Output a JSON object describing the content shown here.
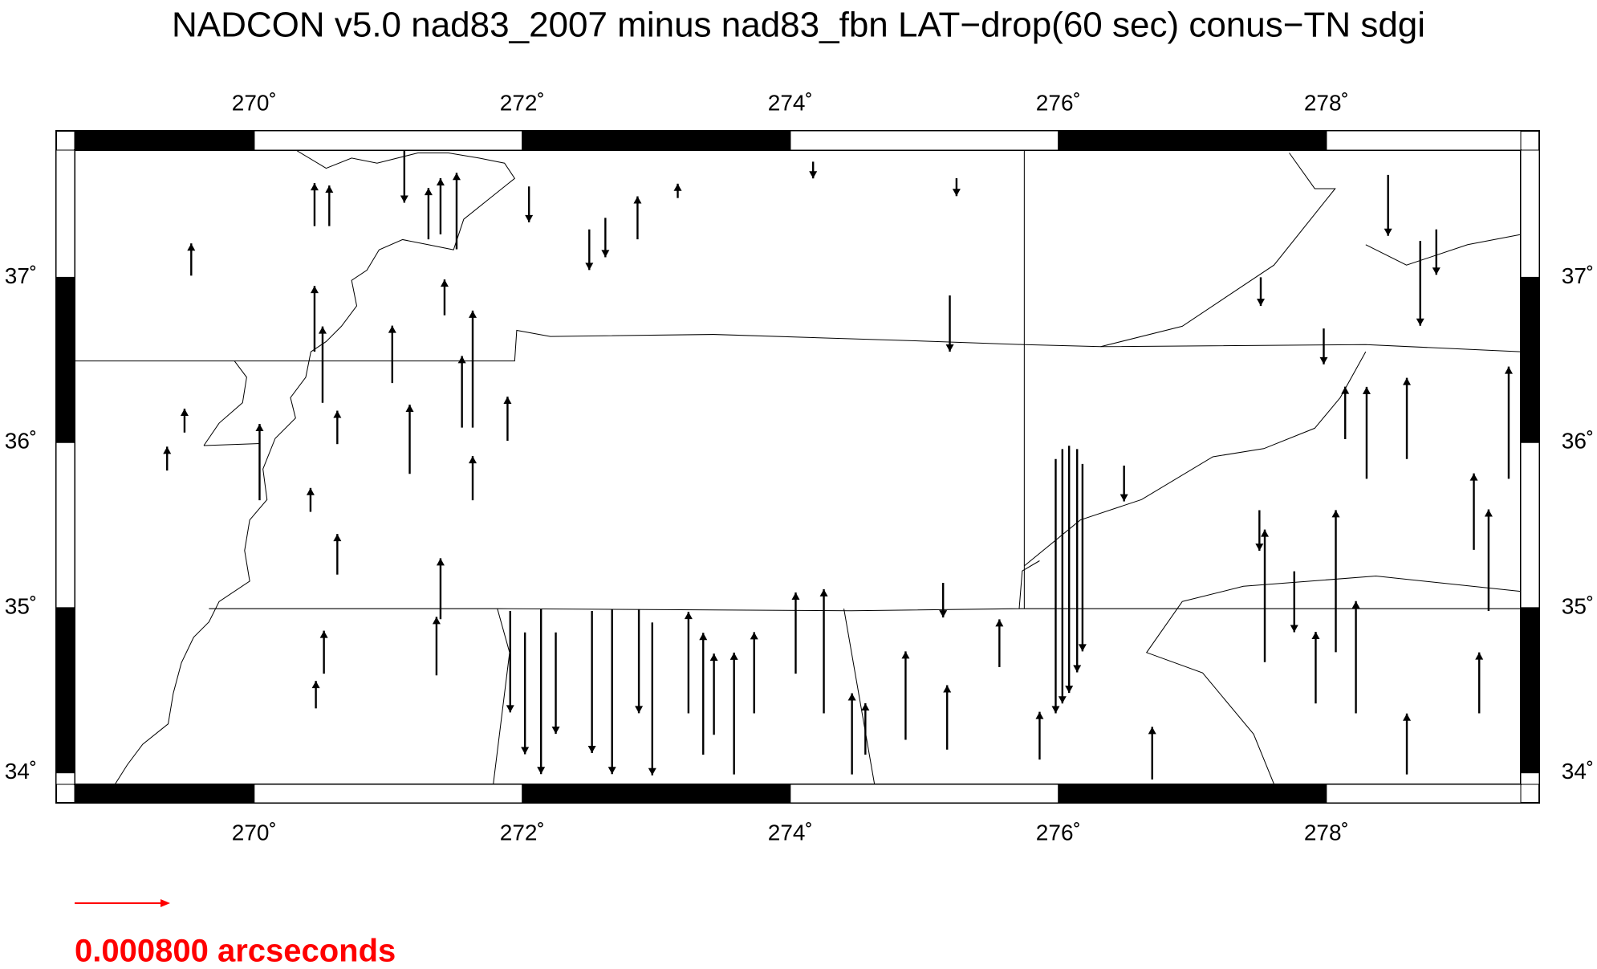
{
  "title": "NADCON v5.0 nad83_2007 minus nad83_fbn LAT−drop(60 sec) conus−TN sdgi",
  "map": {
    "xlim": [
      268.66,
      279.45
    ],
    "ylim": [
      33.93,
      37.77
    ],
    "xticks": [
      {
        "value": 270,
        "label": "270˚"
      },
      {
        "value": 272,
        "label": "272˚"
      },
      {
        "value": 274,
        "label": "274˚"
      },
      {
        "value": 276,
        "label": "276˚"
      },
      {
        "value": 278,
        "label": "278˚"
      }
    ],
    "yticks": [
      {
        "value": 34,
        "label": "34˚"
      },
      {
        "value": 35,
        "label": "35˚"
      },
      {
        "value": 36,
        "label": "36˚"
      },
      {
        "value": 37,
        "label": "37˚"
      }
    ],
    "arrows": [
      [
        269.53,
        37.01,
        0.00027
      ],
      [
        270.45,
        37.31,
        0.00036
      ],
      [
        270.56,
        37.31,
        0.00034
      ],
      [
        271.12,
        37.77,
        -0.00044
      ],
      [
        271.3,
        37.23,
        0.00043
      ],
      [
        271.39,
        37.26,
        0.00047
      ],
      [
        271.51,
        37.17,
        0.00064
      ],
      [
        272.05,
        37.55,
        -0.0003
      ],
      [
        272.5,
        37.29,
        -0.00034
      ],
      [
        272.62,
        37.36,
        -0.00033
      ],
      [
        272.86,
        37.23,
        0.00036
      ],
      [
        273.16,
        37.48,
        0.00012
      ],
      [
        274.17,
        37.7,
        -0.00014
      ],
      [
        275.24,
        37.6,
        -0.00015
      ],
      [
        278.46,
        37.62,
        -0.00051
      ],
      [
        278.7,
        37.22,
        -0.00071
      ],
      [
        278.82,
        37.29,
        -0.00038
      ],
      [
        277.51,
        37.0,
        -0.00024
      ],
      [
        277.98,
        36.69,
        -0.0003
      ],
      [
        270.45,
        36.55,
        0.00055
      ],
      [
        270.51,
        36.24,
        0.00064
      ],
      [
        271.03,
        36.36,
        0.00048
      ],
      [
        271.42,
        36.77,
        0.0003
      ],
      [
        271.63,
        36.09,
        0.00098
      ],
      [
        271.55,
        36.09,
        0.0006
      ],
      [
        271.89,
        36.01,
        0.00037
      ],
      [
        271.16,
        35.81,
        0.00058
      ],
      [
        271.63,
        35.65,
        0.00037
      ],
      [
        270.62,
        35.99,
        0.00028
      ],
      [
        269.48,
        36.06,
        0.0002
      ],
      [
        269.35,
        35.83,
        0.0002
      ],
      [
        270.04,
        35.65,
        0.00064
      ],
      [
        270.42,
        35.58,
        0.0002
      ],
      [
        270.62,
        35.2,
        0.00034
      ],
      [
        271.39,
        34.93,
        0.00051
      ],
      [
        271.36,
        34.59,
        0.00049
      ],
      [
        270.52,
        34.6,
        0.00036
      ],
      [
        270.46,
        34.39,
        0.00023
      ],
      [
        275.19,
        36.89,
        -0.00047
      ],
      [
        276.49,
        35.86,
        -0.0003
      ],
      [
        275.14,
        35.15,
        -0.00029
      ],
      [
        275.56,
        34.64,
        0.0004
      ],
      [
        275.17,
        34.14,
        0.00054
      ],
      [
        274.86,
        34.2,
        0.00074
      ],
      [
        275.86,
        34.08,
        0.0004
      ],
      [
        276.7,
        33.96,
        0.00044
      ],
      [
        276.03,
        35.96,
        -0.00213
      ],
      [
        276.08,
        35.98,
        -0.00207
      ],
      [
        275.98,
        35.9,
        -0.00213
      ],
      [
        276.14,
        35.96,
        -0.00187
      ],
      [
        276.18,
        35.87,
        -0.00157
      ],
      [
        271.91,
        34.98,
        -0.00085
      ],
      [
        272.02,
        34.85,
        -0.00102
      ],
      [
        272.14,
        34.99,
        -0.00138
      ],
      [
        272.25,
        34.85,
        -0.00085
      ],
      [
        272.52,
        34.98,
        -0.00119
      ],
      [
        272.67,
        34.99,
        -0.00138
      ],
      [
        272.87,
        34.99,
        -0.00087
      ],
      [
        272.97,
        34.91,
        -0.00128
      ],
      [
        273.24,
        34.36,
        0.00085
      ],
      [
        273.35,
        34.11,
        0.00102
      ],
      [
        273.43,
        34.23,
        0.00068
      ],
      [
        273.58,
        33.99,
        0.00102
      ],
      [
        273.73,
        34.36,
        0.00068
      ],
      [
        274.04,
        34.6,
        0.00068
      ],
      [
        274.25,
        34.36,
        0.00104
      ],
      [
        274.46,
        33.99,
        0.00068
      ],
      [
        274.56,
        34.11,
        0.00043
      ],
      [
        278.14,
        36.02,
        0.00044
      ],
      [
        278.3,
        35.78,
        0.00077
      ],
      [
        278.6,
        35.9,
        0.00068
      ],
      [
        279.1,
        35.35,
        0.00064
      ],
      [
        279.21,
        34.98,
        0.00085
      ],
      [
        279.36,
        35.78,
        0.00094
      ],
      [
        278.07,
        34.73,
        0.00119
      ],
      [
        278.22,
        34.36,
        0.00094
      ],
      [
        277.54,
        34.67,
        0.00111
      ],
      [
        277.92,
        34.42,
        0.0006
      ],
      [
        279.14,
        34.36,
        0.00051
      ],
      [
        278.6,
        33.99,
        0.00051
      ],
      [
        277.5,
        35.59,
        -0.00034
      ],
      [
        277.76,
        35.22,
        -0.00051
      ]
    ]
  },
  "scale": {
    "value": 0.0008,
    "label": "0.000800 arcseconds",
    "color": "#ff0000"
  }
}
